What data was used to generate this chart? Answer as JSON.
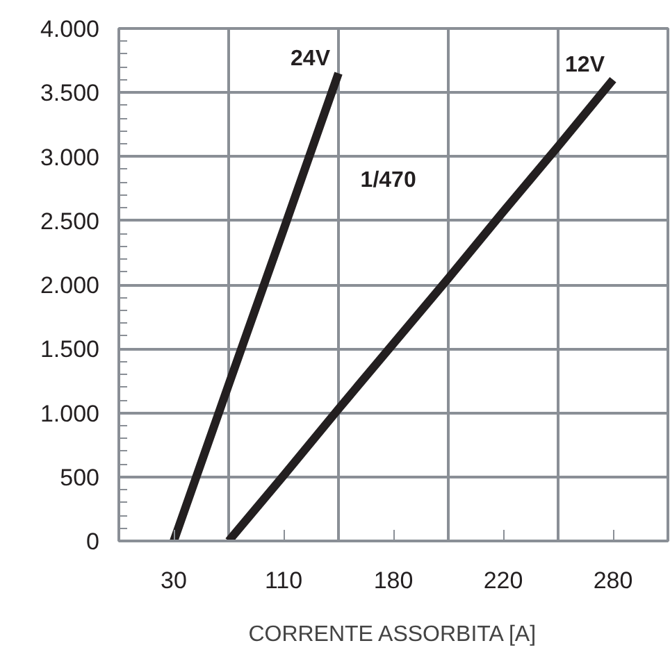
{
  "chart_data": {
    "type": "line",
    "xlabel": "CORRENTE ASSORBITA [A]",
    "categories": [
      "30",
      null,
      "110",
      null,
      "180",
      null,
      "220",
      null,
      "280"
    ],
    "ylim": [
      0,
      4000
    ],
    "yticks": [
      {
        "value": 0,
        "label": "0"
      },
      {
        "value": 500,
        "label": "500"
      },
      {
        "value": 1000,
        "label": "1.000"
      },
      {
        "value": 1500,
        "label": "1.500"
      },
      {
        "value": 2000,
        "label": "2.000"
      },
      {
        "value": 2500,
        "label": "2.500"
      },
      {
        "value": 3000,
        "label": "3.000"
      },
      {
        "value": 3500,
        "label": "3.500"
      },
      {
        "value": 4000,
        "label": "4.000"
      }
    ],
    "grid": true,
    "marker": "none",
    "line_style": "solid",
    "annotations": [
      "1/470"
    ],
    "series": [
      {
        "name": "24V",
        "color": "#231f20",
        "values": [
          0,
          1220,
          2430,
          3650,
          null,
          null,
          null,
          null,
          null
        ]
      },
      {
        "name": "12V",
        "color": "#231f20",
        "values": [
          null,
          0,
          510,
          1030,
          1540,
          2050,
          2570,
          3080,
          3600
        ]
      }
    ]
  }
}
